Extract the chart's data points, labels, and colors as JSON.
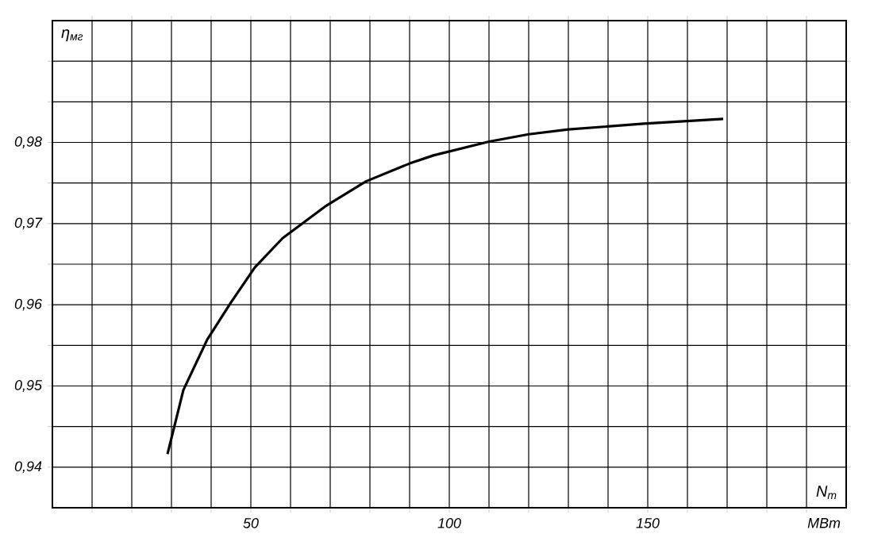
{
  "chart_data": {
    "type": "line",
    "xlabel": "N$_{т}$",
    "ylabel": "η$_{мг}$",
    "annotations": [
      "МВт"
    ],
    "x": [
      29,
      33,
      39,
      45,
      51,
      58,
      69,
      79,
      90,
      96,
      110,
      120,
      130,
      149,
      169
    ],
    "series": [
      {
        "color": "#000000",
        "values": [
          0.9416,
          0.9495,
          0.9557,
          0.9603,
          0.9646,
          0.9682,
          0.9722,
          0.9752,
          0.9774,
          0.9784,
          0.9801,
          0.981,
          0.9816,
          0.9823,
          0.9829
        ]
      }
    ],
    "xlim": [
      0,
      200
    ],
    "ylim": [
      0.935,
      0.995
    ],
    "xticks": [
      {
        "value": 10,
        "label": null
      },
      {
        "value": 20,
        "label": null
      },
      {
        "value": 30,
        "label": null
      },
      {
        "value": 40,
        "label": null
      },
      50,
      {
        "value": 60,
        "label": null
      },
      {
        "value": 70,
        "label": null
      },
      {
        "value": 80,
        "label": null
      },
      {
        "value": 90,
        "label": null
      },
      100,
      {
        "value": 110,
        "label": null
      },
      {
        "value": 120,
        "label": null
      },
      {
        "value": 130,
        "label": null
      },
      {
        "value": 140,
        "label": null
      },
      150,
      {
        "value": 160,
        "label": null
      },
      {
        "value": 170,
        "label": null
      },
      {
        "value": 180,
        "label": null
      },
      {
        "value": 190,
        "label": null
      }
    ],
    "yticks": [
      {
        "value": 0.94,
        "label": "0,94"
      },
      {
        "value": 0.945,
        "label": null
      },
      {
        "value": 0.95,
        "label": "0,95"
      },
      {
        "value": 0.955,
        "label": null
      },
      {
        "value": 0.96,
        "label": "0,96"
      },
      {
        "value": 0.965,
        "label": null
      },
      {
        "value": 0.97,
        "label": "0,97"
      },
      {
        "value": 0.975,
        "label": null
      },
      {
        "value": 0.98,
        "label": "0,98"
      },
      {
        "value": 0.985,
        "label": null
      },
      {
        "value": 0.99,
        "label": null
      }
    ],
    "grid": true,
    "marker": "none",
    "line_style": "solid"
  }
}
